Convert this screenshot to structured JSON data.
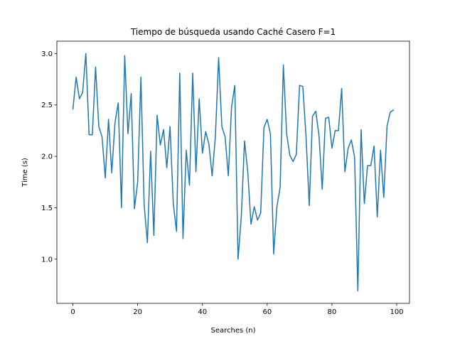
{
  "chart_data": {
    "type": "line",
    "title": "Tiempo de búsqueda usando Caché Casero F=1",
    "xlabel": "Searches (n)",
    "ylabel": "Time (s)",
    "xlim": [
      -4.95,
      103.95
    ],
    "ylim": [
      0.57,
      3.12
    ],
    "xticks": [
      0,
      20,
      40,
      60,
      80,
      100
    ],
    "yticks": [
      1.0,
      1.5,
      2.0,
      2.5,
      3.0
    ],
    "xtick_labels": [
      "0",
      "20",
      "40",
      "60",
      "80",
      "100"
    ],
    "ytick_labels": [
      "1.0",
      "1.5",
      "2.0",
      "2.5",
      "3.0"
    ],
    "grid": false,
    "series": [
      {
        "color": "#1f77b4",
        "x": [
          0,
          1,
          2,
          3,
          4,
          5,
          6,
          7,
          8,
          9,
          10,
          11,
          12,
          13,
          14,
          15,
          16,
          17,
          18,
          19,
          20,
          21,
          22,
          23,
          24,
          25,
          26,
          27,
          28,
          29,
          30,
          31,
          32,
          33,
          34,
          35,
          36,
          37,
          38,
          39,
          40,
          41,
          42,
          43,
          44,
          45,
          46,
          47,
          48,
          49,
          50,
          51,
          52,
          53,
          54,
          55,
          56,
          57,
          58,
          59,
          60,
          61,
          62,
          63,
          64,
          65,
          66,
          67,
          68,
          69,
          70,
          71,
          72,
          73,
          74,
          75,
          76,
          77,
          78,
          79,
          80,
          81,
          82,
          83,
          84,
          85,
          86,
          87,
          88,
          89,
          90,
          91,
          92,
          93,
          94,
          95,
          96,
          97,
          98,
          99
        ],
        "values": [
          2.46,
          2.77,
          2.56,
          2.62,
          3.0,
          2.21,
          2.21,
          2.87,
          2.29,
          2.19,
          1.79,
          2.36,
          1.84,
          2.33,
          2.52,
          1.5,
          2.98,
          2.22,
          2.61,
          1.49,
          1.75,
          2.77,
          1.53,
          1.16,
          2.05,
          1.23,
          2.4,
          2.11,
          2.26,
          1.89,
          2.29,
          1.54,
          1.27,
          2.81,
          1.2,
          2.06,
          1.72,
          2.81,
          1.85,
          2.56,
          2.03,
          2.24,
          2.12,
          1.81,
          2.19,
          2.96,
          2.29,
          2.19,
          1.81,
          2.48,
          2.69,
          1.0,
          1.41,
          2.15,
          1.85,
          1.34,
          1.51,
          1.38,
          1.45,
          2.28,
          2.36,
          2.22,
          1.05,
          1.51,
          1.7,
          2.89,
          2.22,
          2.01,
          1.95,
          2.02,
          2.69,
          2.68,
          2.19,
          1.52,
          2.39,
          2.44,
          2.2,
          1.68,
          2.37,
          2.38,
          2.08,
          2.25,
          2.25,
          2.66,
          1.85,
          2.08,
          2.16,
          1.99,
          0.69,
          2.26,
          1.54,
          1.91,
          1.91,
          2.1,
          1.41,
          2.06,
          1.6,
          2.29,
          2.43,
          2.45
        ]
      }
    ]
  }
}
